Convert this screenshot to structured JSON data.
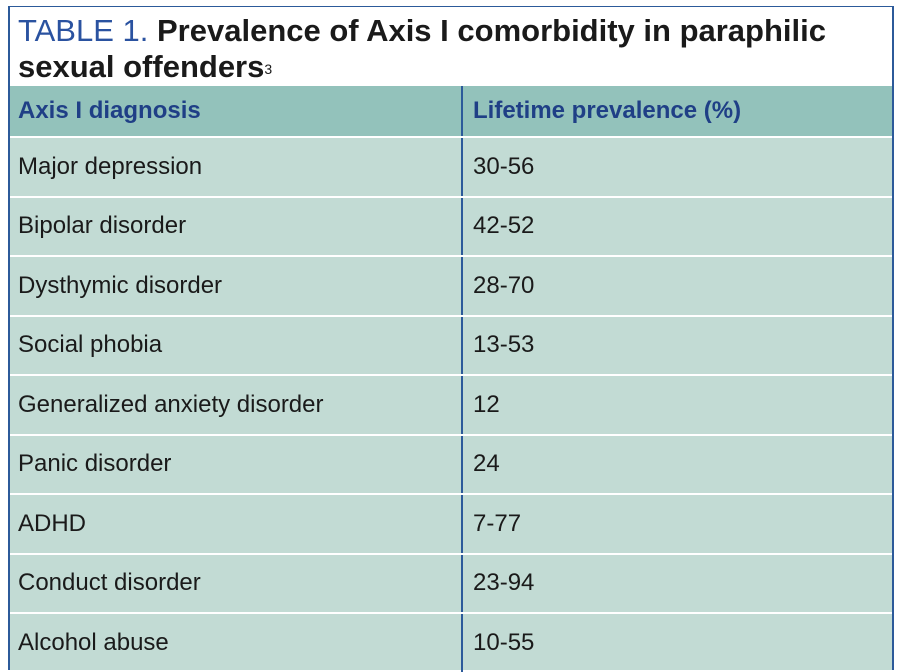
{
  "caption": {
    "label": "TABLE 1.",
    "title": "Prevalence of Axis I comorbidity in paraphilic sexual offenders",
    "reference": "3"
  },
  "table": {
    "headers": [
      "Axis I diagnosis",
      "Lifetime prevalence (%)"
    ],
    "rows": [
      {
        "diagnosis": "Major depression",
        "prevalence": "30-56"
      },
      {
        "diagnosis": "Bipolar disorder",
        "prevalence": "42-52"
      },
      {
        "diagnosis": "Dysthymic disorder",
        "prevalence": "28-70"
      },
      {
        "diagnosis": "Social phobia",
        "prevalence": "13-53"
      },
      {
        "diagnosis": "Generalized anxiety disorder",
        "prevalence": "12"
      },
      {
        "diagnosis": "Panic disorder",
        "prevalence": "24"
      },
      {
        "diagnosis": "ADHD",
        "prevalence": "7-77"
      },
      {
        "diagnosis": "Conduct disorder",
        "prevalence": "23-94"
      },
      {
        "diagnosis": "Alcohol abuse",
        "prevalence": "10-55"
      }
    ]
  },
  "colors": {
    "header_bg": "#93c2bb",
    "row_bg": "#c2dbd4",
    "accent": "#2a52a0"
  }
}
